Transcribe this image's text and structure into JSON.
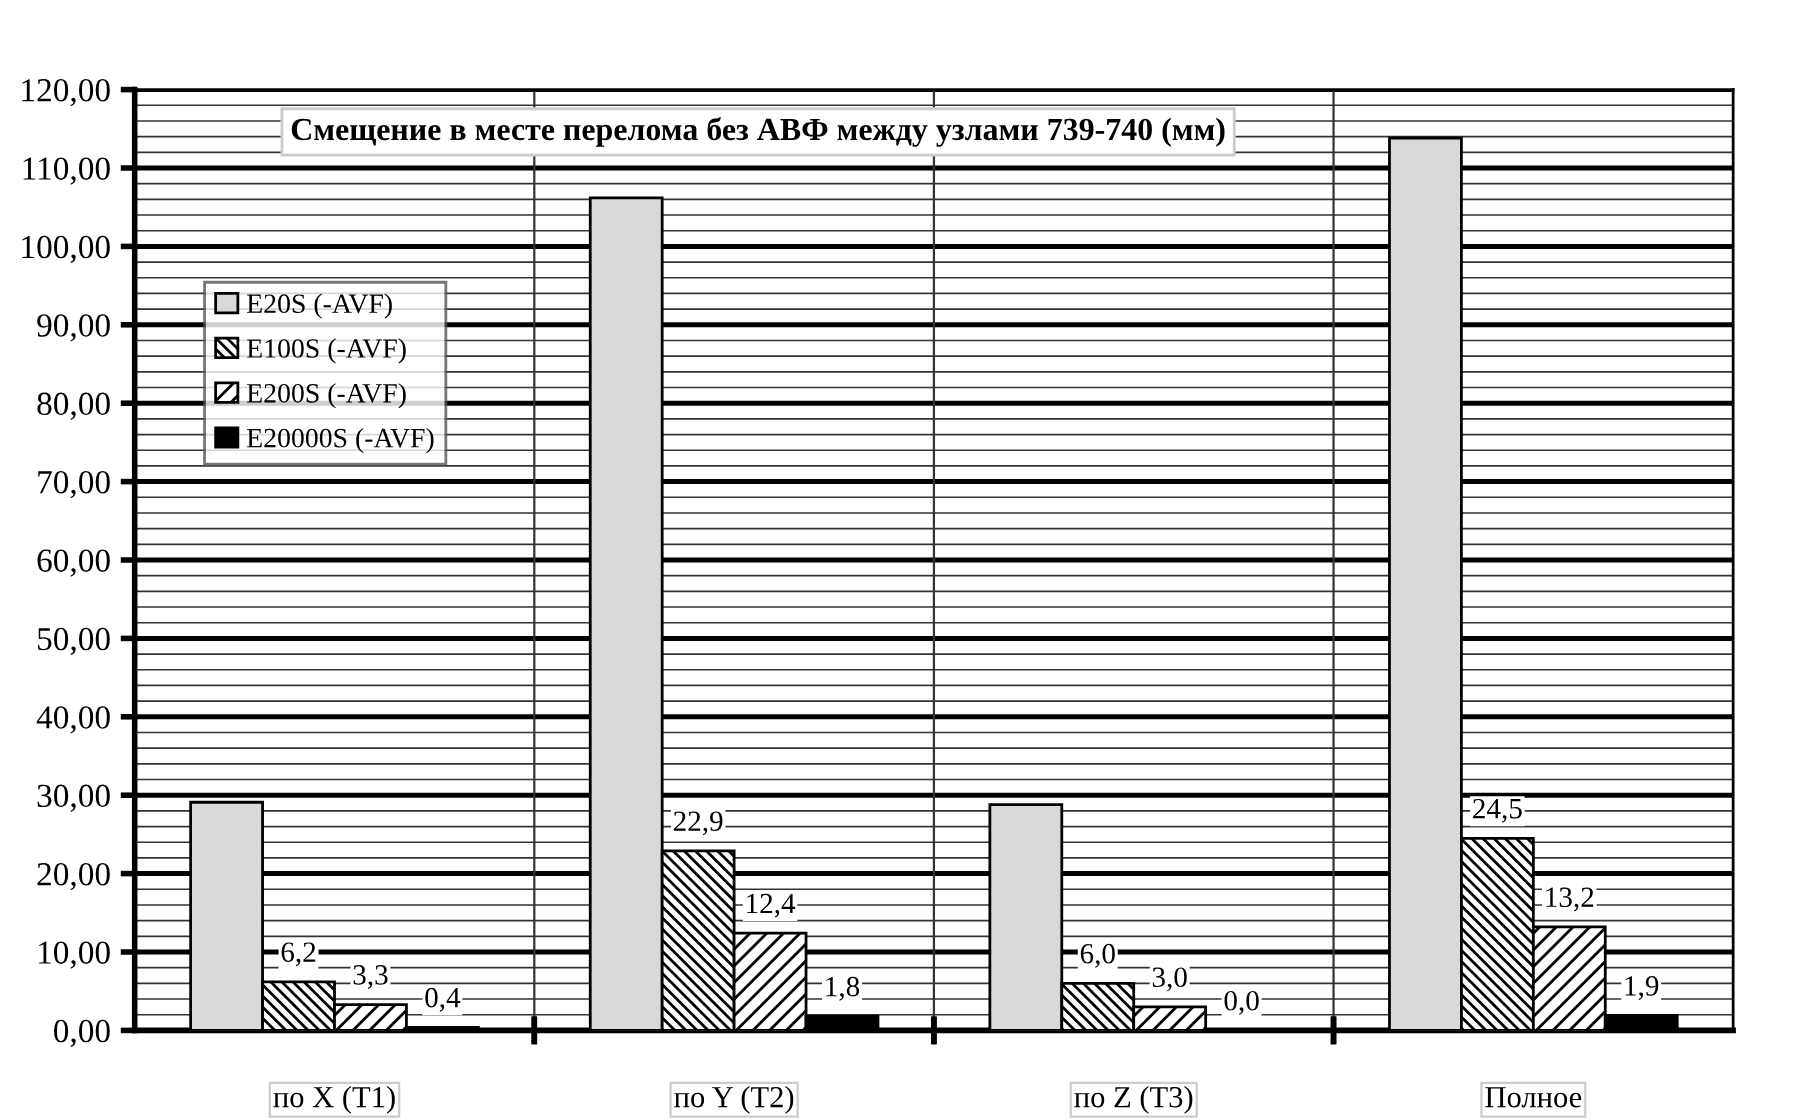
{
  "chart_data": {
    "type": "bar",
    "title": "Смещение в месте перелома без АВФ между узлами 739-740 (мм)",
    "categories": [
      "по X (T1)",
      "по Y (T2)",
      "по Z (T3)",
      "Полное"
    ],
    "series": [
      {
        "name": "E20S (-AVF)",
        "color": "#d9d9d9",
        "values": [
          29.1,
          106.2,
          28.8,
          113.8
        ]
      },
      {
        "name": "E100S (-AVF)",
        "color": "#000000",
        "values": [
          6.2,
          22.9,
          6.0,
          24.5
        ],
        "value_labels": [
          "6,2",
          "22,9",
          "6,0",
          "24,5"
        ]
      },
      {
        "name": "E200S (-AVF)",
        "color": "#000000",
        "values": [
          3.3,
          12.4,
          3.0,
          13.2
        ],
        "value_labels": [
          "3,3",
          "12,4",
          "3,0",
          "13,2"
        ]
      },
      {
        "name": "E20000S (-AVF)",
        "color": "#000000",
        "values": [
          0.4,
          1.8,
          0.0,
          1.9
        ],
        "value_labels": [
          "0,4",
          "1,8",
          "0,0",
          "1,9"
        ]
      }
    ],
    "ylim": [
      0,
      120
    ],
    "yticks": [
      {
        "value": 0,
        "label": "0,00"
      },
      {
        "value": 10,
        "label": "10,00"
      },
      {
        "value": 20,
        "label": "20,00"
      },
      {
        "value": 30,
        "label": "30,00"
      },
      {
        "value": 40,
        "label": "40,00"
      },
      {
        "value": 50,
        "label": "50,00"
      },
      {
        "value": 60,
        "label": "60,00"
      },
      {
        "value": 70,
        "label": "70,00"
      },
      {
        "value": 80,
        "label": "80,00"
      },
      {
        "value": 90,
        "label": "90,00"
      },
      {
        "value": 100,
        "label": "100,00"
      },
      {
        "value": 110,
        "label": "110,00"
      },
      {
        "value": 120,
        "label": "120,00"
      }
    ],
    "grid": true,
    "legend": "top left"
  }
}
